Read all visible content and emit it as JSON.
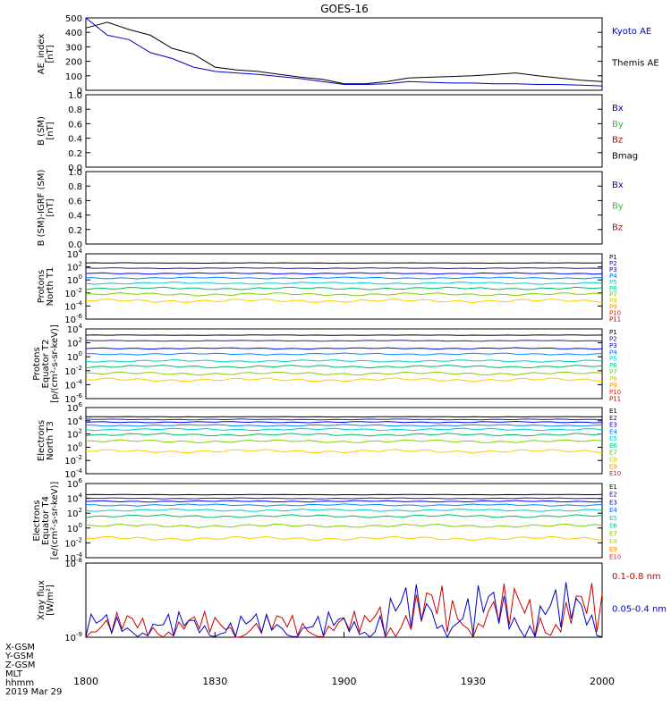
{
  "title": "GOES-16",
  "footer": {
    "labels": [
      "X-GSM",
      "Y-GSM",
      "Z-GSM",
      "MLT",
      "hhmm",
      "2019 Mar 29"
    ]
  },
  "x_axis": {
    "ticks": [
      "1800",
      "1830",
      "1900",
      "1930",
      "2000"
    ]
  },
  "colors": {
    "black": "#000000",
    "blue": "#0000cc",
    "green": "#22cc22",
    "red": "#cc0000"
  },
  "chart_data": [
    {
      "id": "ae",
      "type": "line",
      "ylabel": [
        "AE_index",
        "[nT]"
      ],
      "ylim": [
        0,
        500
      ],
      "yticks": [
        "0",
        "100",
        "200",
        "300",
        "400",
        "500"
      ],
      "legend": [
        {
          "name": "Kyoto AE",
          "color": "#0000cc"
        },
        {
          "name": "Themis AE",
          "color": "#000000"
        }
      ],
      "x": [
        "1800",
        "1805",
        "1810",
        "1815",
        "1820",
        "1825",
        "1830",
        "1835",
        "1840",
        "1845",
        "1850",
        "1855",
        "1900",
        "1905",
        "1910",
        "1915",
        "1920",
        "1925",
        "1930",
        "1935",
        "1940",
        "1945",
        "1950",
        "1955",
        "2000"
      ],
      "series": [
        {
          "name": "Themis AE",
          "color": "#000000",
          "values": [
            430,
            470,
            420,
            380,
            290,
            250,
            160,
            140,
            130,
            110,
            90,
            75,
            45,
            45,
            60,
            85,
            90,
            95,
            100,
            110,
            120,
            100,
            85,
            70,
            60
          ]
        },
        {
          "name": "Kyoto AE",
          "color": "#0000cc",
          "values": [
            500,
            380,
            350,
            260,
            220,
            160,
            130,
            120,
            110,
            95,
            80,
            60,
            40,
            40,
            45,
            60,
            55,
            50,
            50,
            45,
            45,
            40,
            40,
            35,
            30
          ]
        }
      ]
    },
    {
      "id": "bsm",
      "type": "line",
      "ylabel": [
        "B (SM)",
        "[nT]"
      ],
      "ylim": [
        0,
        1
      ],
      "yticks": [
        "0.0",
        "0.2",
        "0.4",
        "0.6",
        "0.8",
        "1.0"
      ],
      "legend": [
        {
          "name": "Bx",
          "color": "#0000cc"
        },
        {
          "name": "By",
          "color": "#22cc22"
        },
        {
          "name": "Bz",
          "color": "#cc0000"
        },
        {
          "name": "Bmag",
          "color": "#000000"
        }
      ]
    },
    {
      "id": "bigrf",
      "type": "line",
      "ylabel": [
        "B (SM)-IGRF (SM)",
        "[nT]"
      ],
      "ylim": [
        0,
        1
      ],
      "yticks": [
        "0.0",
        "0.2",
        "0.4",
        "0.6",
        "0.8",
        "1.0"
      ],
      "legend": [
        {
          "name": "Bx",
          "color": "#0000cc"
        },
        {
          "name": "By",
          "color": "#22cc22"
        },
        {
          "name": "Bz",
          "color": "#cc0000"
        }
      ]
    },
    {
      "id": "pt1",
      "type": "line",
      "log": true,
      "ylabel": [
        "Protons",
        "North T1"
      ],
      "ylim_exp": [
        -6,
        4
      ],
      "yticks_exp": [
        "-6",
        "-4",
        "-2",
        "0",
        "2",
        "4"
      ],
      "legend": [
        "P1",
        "P2",
        "P3",
        "P4",
        "P5",
        "P6",
        "P7",
        "P8",
        "P9",
        "P10",
        "P11"
      ],
      "series_levels_exp": [
        2.6,
        1.8,
        1.0,
        0.3,
        -0.5,
        -1.3,
        -2.2,
        -3.2
      ]
    },
    {
      "id": "pt2",
      "type": "line",
      "log": true,
      "ylabel": [
        "Protons",
        "Equator T2",
        "[p/(cm²-s-sr-keV)]"
      ],
      "ylim_exp": [
        -6,
        4
      ],
      "yticks_exp": [
        "-6",
        "-4",
        "-2",
        "0",
        "2",
        "4"
      ],
      "legend": [
        "P1",
        "P2",
        "P3",
        "P4",
        "P5",
        "P6",
        "P7",
        "P8",
        "P9",
        "P10",
        "P11"
      ],
      "series_levels_exp": [
        3.1,
        2.3,
        1.2,
        0.4,
        -0.6,
        -1.4,
        -2.4,
        -3.3
      ]
    },
    {
      "id": "et3",
      "type": "line",
      "log": true,
      "ylabel": [
        "Electrons",
        "North T3"
      ],
      "ylim_exp": [
        -4,
        6
      ],
      "yticks_exp": [
        "-4",
        "-2",
        "0",
        "2",
        "4",
        "6"
      ],
      "legend": [
        "E1",
        "E2",
        "E3",
        "E4",
        "E5",
        "E6",
        "E7",
        "E8",
        "E9",
        "E10"
      ],
      "series_levels_exp": [
        4.6,
        4.2,
        3.8,
        3.3,
        2.7,
        1.9,
        0.9,
        -0.6
      ]
    },
    {
      "id": "et4",
      "type": "line",
      "log": true,
      "ylabel": [
        "Electrons",
        "Equator T4",
        "[e/(cm²-s-sr-keV)]"
      ],
      "ylim_exp": [
        -4,
        6
      ],
      "yticks_exp": [
        "-4",
        "-2",
        "0",
        "2",
        "4",
        "6"
      ],
      "legend": [
        "E1",
        "E2",
        "E3",
        "E4",
        "E5",
        "E6",
        "E7",
        "E8",
        "E9",
        "E10"
      ],
      "series_levels_exp": [
        4.5,
        4.0,
        3.6,
        3.1,
        2.4,
        1.6,
        0.3,
        -1.4
      ]
    },
    {
      "id": "xray",
      "type": "line",
      "log": true,
      "ylabel": [
        "Xray flux",
        "[W/m²]"
      ],
      "ylim_exp": [
        -9,
        -8
      ],
      "yticks_exp": [
        "-9",
        "-8"
      ],
      "legend": [
        {
          "name": "0.1-0.8 nm",
          "color": "#cc0000"
        },
        {
          "name": "0.05-0.4 nm",
          "color": "#0000cc"
        }
      ]
    }
  ]
}
